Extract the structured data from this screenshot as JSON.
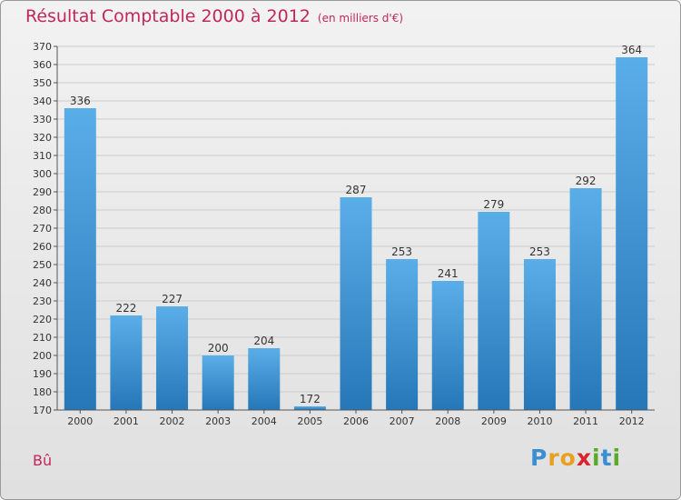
{
  "header": {
    "title": "Résultat Comptable 2000 à 2012",
    "subtitle": "(en milliers d'€)"
  },
  "footer": {
    "commune": "Bû",
    "brand": "Proxiti",
    "brand_letters": [
      "P",
      "r",
      "o",
      "x",
      "i",
      "t",
      "i"
    ],
    "brand_colors": [
      "#3b8fd1",
      "#e8a020",
      "#e8a020",
      "#d9242c",
      "#5aaa2a",
      "#3b8fd1",
      "#5aaa2a"
    ]
  },
  "chart_data": {
    "type": "bar",
    "title": "Résultat Comptable 2000 à 2012",
    "subtitle": "(en milliers d'€)",
    "xlabel": "",
    "ylabel": "",
    "categories": [
      "2000",
      "2001",
      "2002",
      "2003",
      "2004",
      "2005",
      "2006",
      "2007",
      "2008",
      "2009",
      "2010",
      "2011",
      "2012"
    ],
    "values": [
      336,
      222,
      227,
      200,
      204,
      172,
      287,
      253,
      241,
      279,
      253,
      292,
      364
    ],
    "ylim": [
      170,
      370
    ],
    "yticks": [
      170,
      180,
      190,
      200,
      210,
      220,
      230,
      240,
      250,
      260,
      270,
      280,
      290,
      300,
      310,
      320,
      330,
      340,
      350,
      360,
      370
    ],
    "grid": true,
    "colors": {
      "bar_light": "#5aaee8",
      "bar_dark": "#2677b8",
      "grid": "#cccccc",
      "axis": "#555555",
      "text": "#333333"
    }
  }
}
